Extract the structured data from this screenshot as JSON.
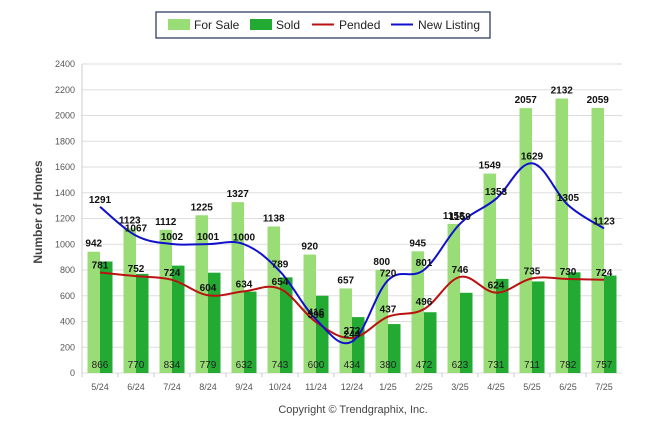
{
  "chart_data": {
    "type": "bar",
    "categories": [
      "5/24",
      "6/24",
      "7/24",
      "8/24",
      "9/24",
      "10/24",
      "11/24",
      "12/24",
      "1/25",
      "2/25",
      "3/25",
      "4/25",
      "5/25",
      "6/25",
      "7/25"
    ],
    "series": [
      {
        "name": "For Sale",
        "type": "bar",
        "color": "#99dd77",
        "values": [
          942,
          1123,
          1112,
          1225,
          1327,
          1138,
          920,
          657,
          800,
          945,
          1158,
          1549,
          2057,
          2132,
          2059
        ]
      },
      {
        "name": "Sold",
        "type": "bar",
        "color": "#22aa33",
        "values": [
          866,
          770,
          834,
          779,
          632,
          743,
          600,
          434,
          380,
          472,
          623,
          731,
          711,
          782,
          757
        ]
      },
      {
        "name": "Pended",
        "type": "line",
        "color": "#bb1111",
        "values": [
          781,
          752,
          724,
          604,
          634,
          654,
          396,
          272,
          437,
          496,
          746,
          624,
          735,
          730,
          724
        ]
      },
      {
        "name": "New Listing",
        "type": "line",
        "color": "#1111cc",
        "values": [
          1291,
          1067,
          1002,
          1001,
          1000,
          789,
          416,
          244,
          720,
          801,
          1159,
          1353,
          1629,
          1305,
          1123
        ]
      }
    ],
    "ylabel": "Number of Homes",
    "xlabel": "",
    "ylim": [
      0,
      2400
    ],
    "yticks": [
      "0",
      "200",
      "400",
      "600",
      "800",
      "1000",
      "1200",
      "1400",
      "1600",
      "1800",
      "2000",
      "2200",
      "2400"
    ],
    "legend_position": "top-center",
    "grid": true
  },
  "footer": {
    "copyright": "Copyright © Trendgraphix, Inc."
  }
}
